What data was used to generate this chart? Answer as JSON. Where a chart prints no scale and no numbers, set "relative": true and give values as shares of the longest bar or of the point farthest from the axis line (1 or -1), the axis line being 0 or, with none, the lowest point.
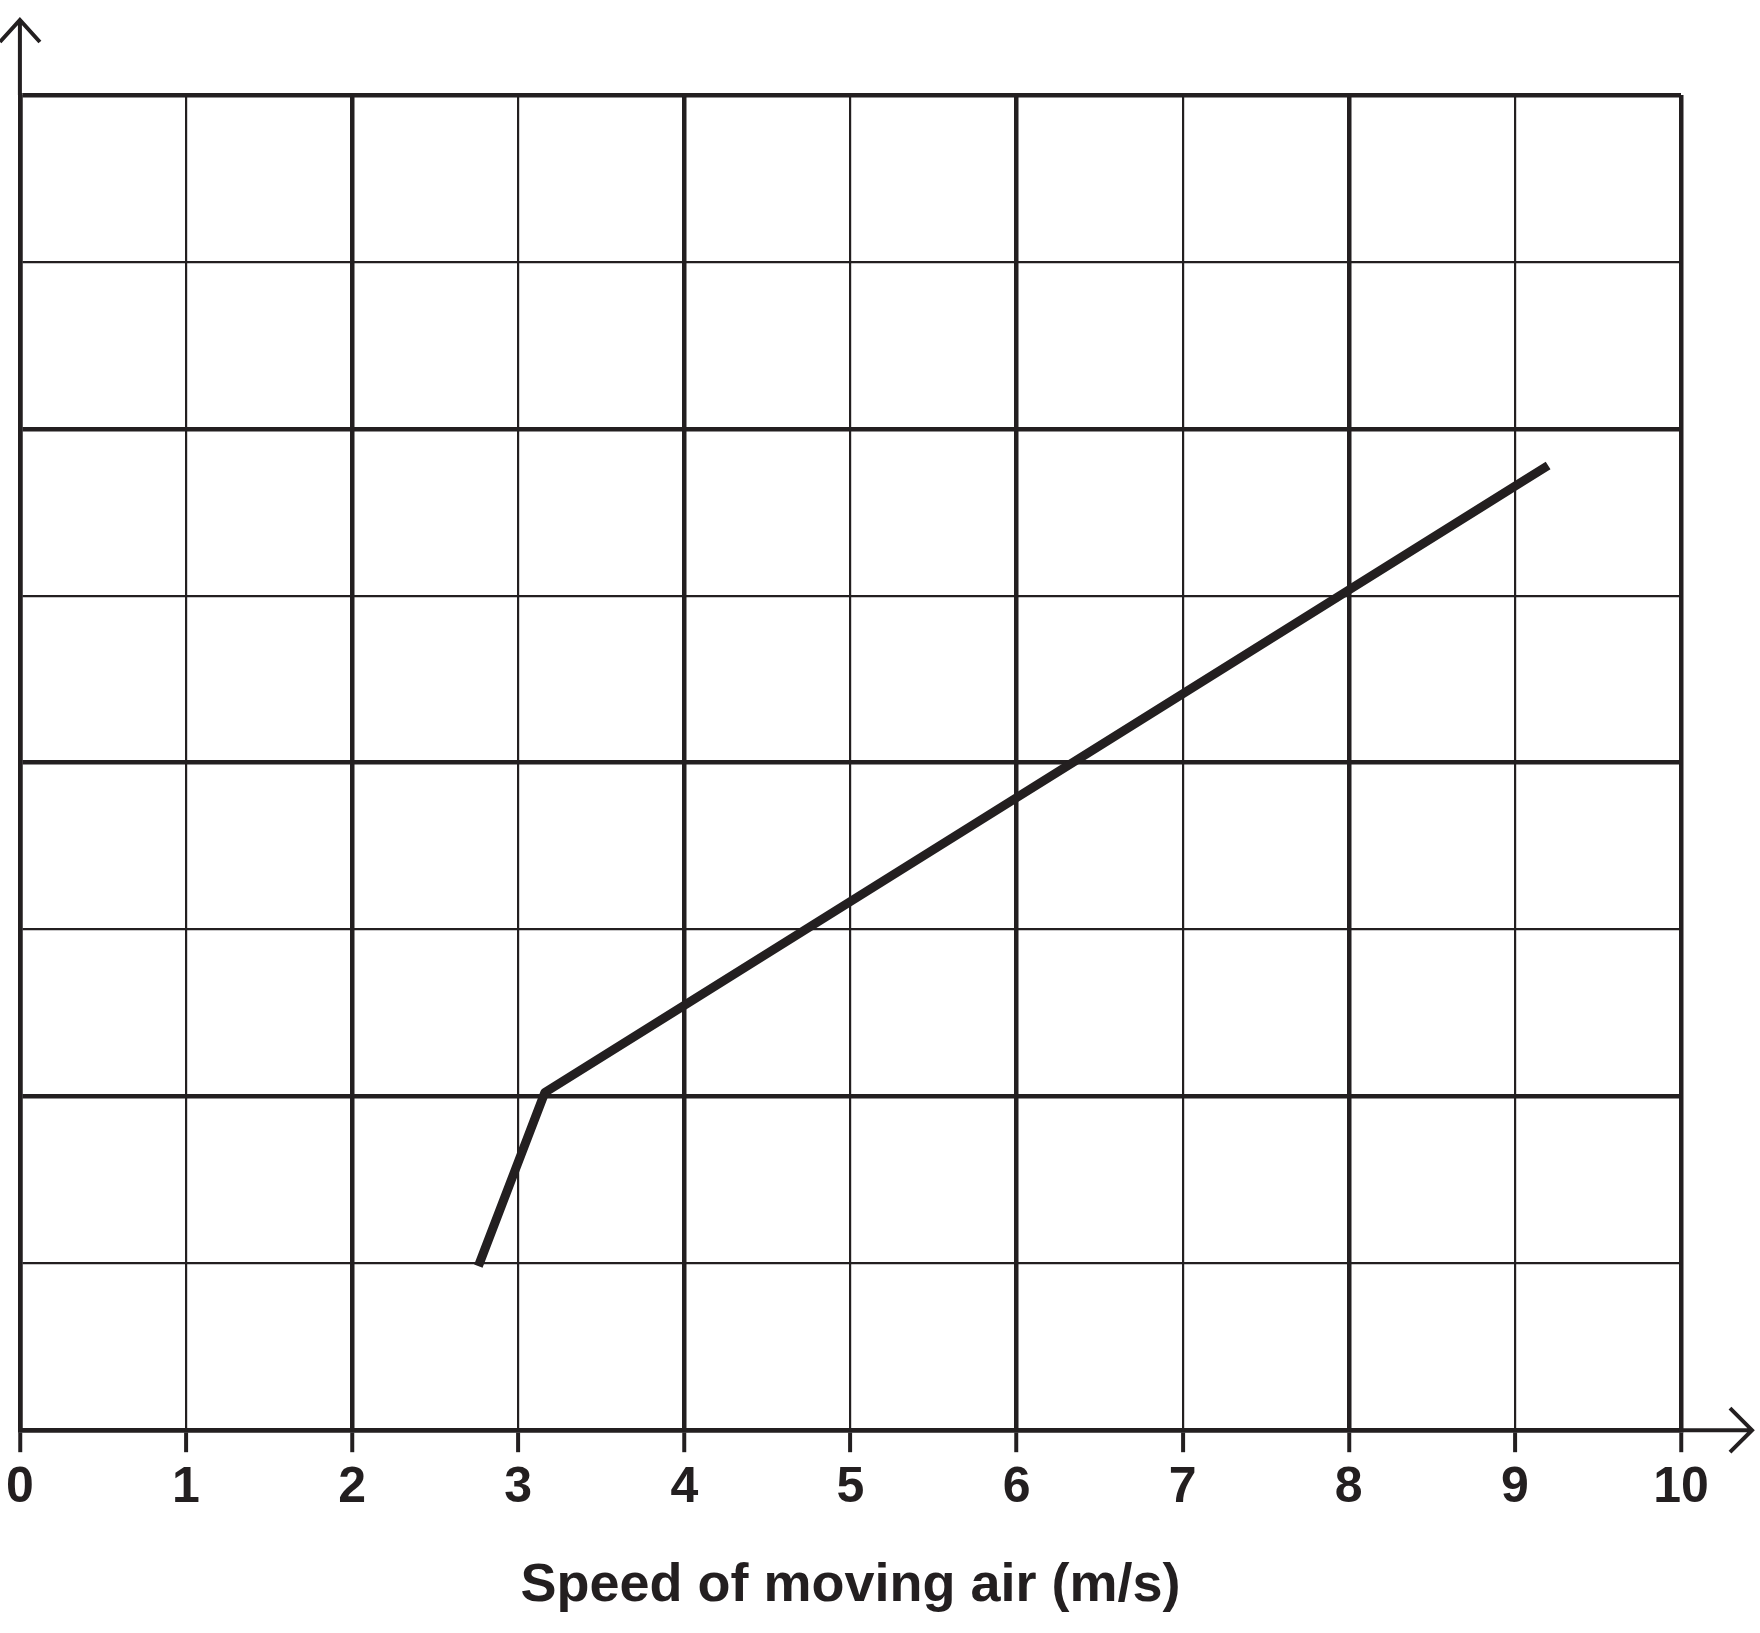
{
  "chart_data": {
    "type": "line",
    "xlabel": "Speed of moving air (m/s)",
    "relative": true,
    "series": [
      {
        "color": "#231f20",
        "x": [
          2.76,
          3.16,
          9.2
        ],
        "values": [
          0.17,
          0.35,
          1
        ]
      }
    ],
    "xlim": [
      0,
      10
    ],
    "xticks": [
      0,
      1,
      2,
      3,
      4,
      5,
      6,
      7,
      8,
      9,
      10
    ],
    "grid": true,
    "legend": false,
    "marker": "none",
    "line_style": "solid"
  }
}
